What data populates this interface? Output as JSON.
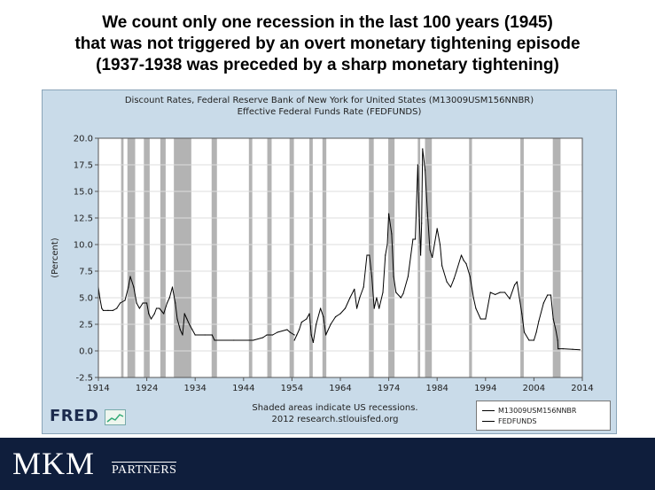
{
  "slide": {
    "title_lines": [
      "We count only one recession in the last 100 years (1945)",
      "that was not triggered by an overt monetary tightening episode",
      "(1937-1938 was preceded by a sharp monetary tightening)"
    ]
  },
  "chart_data": {
    "type": "line",
    "title": "Discount Rates, Federal Reserve Bank of New York for United States (M13009USM156NNBR)",
    "subtitle": "Effective Federal Funds Rate (FEDFUNDS)",
    "xlabel": "",
    "ylabel": "(Percent)",
    "xlim": [
      1914,
      2014
    ],
    "ylim": [
      -2.5,
      20.0
    ],
    "x_ticks": [
      "1914",
      "1924",
      "1934",
      "1944",
      "1954",
      "1964",
      "1974",
      "1984",
      "1994",
      "2004",
      "2014"
    ],
    "y_ticks": [
      "-2.5",
      "0.0",
      "2.5",
      "5.0",
      "7.5",
      "10.0",
      "12.5",
      "15.0",
      "17.5",
      "20.0"
    ],
    "grid": true,
    "legend_position": "bottom-right",
    "recession_shading": [
      [
        1918.7,
        1919.2
      ],
      [
        1920.0,
        1921.6
      ],
      [
        1923.4,
        1924.6
      ],
      [
        1926.8,
        1927.9
      ],
      [
        1929.6,
        1933.2
      ],
      [
        1937.4,
        1938.5
      ],
      [
        1945.1,
        1945.8
      ],
      [
        1948.9,
        1949.8
      ],
      [
        1953.5,
        1954.4
      ],
      [
        1957.6,
        1958.3
      ],
      [
        1960.3,
        1961.1
      ],
      [
        1969.9,
        1970.9
      ],
      [
        1973.9,
        1975.2
      ],
      [
        1980.0,
        1980.5
      ],
      [
        1981.5,
        1982.9
      ],
      [
        1990.6,
        1991.2
      ],
      [
        2001.2,
        2001.9
      ],
      [
        2007.9,
        2009.5
      ]
    ],
    "series": [
      {
        "name": "M13009USM156NNBR",
        "x": [
          1914.0,
          1914.3,
          1914.7,
          1915.0,
          1916.0,
          1917.0,
          1917.8,
          1918.5,
          1919.5,
          1920.2,
          1920.6,
          1921.3,
          1921.9,
          1922.5,
          1923.2,
          1924.0,
          1924.4,
          1924.9,
          1925.6,
          1926.0,
          1926.6,
          1927.5,
          1928.2,
          1928.7,
          1929.3,
          1929.9,
          1930.3,
          1930.9,
          1931.4,
          1931.8,
          1932.3,
          1932.8,
          1933.4,
          1934.0,
          1936.0,
          1937.5,
          1938.0,
          1942.0,
          1946.0,
          1948.0,
          1948.8,
          1950.0,
          1951.0,
          1953.0,
          1953.6,
          1954.5
        ],
        "y": [
          6.0,
          5.0,
          4.0,
          3.8,
          3.8,
          3.8,
          4.0,
          4.5,
          4.75,
          6.0,
          7.0,
          6.0,
          4.5,
          4.0,
          4.5,
          4.5,
          3.5,
          3.0,
          3.5,
          4.0,
          4.0,
          3.5,
          4.5,
          5.0,
          6.0,
          4.5,
          3.0,
          2.0,
          1.5,
          3.5,
          3.0,
          2.5,
          2.0,
          1.5,
          1.5,
          1.5,
          1.0,
          1.0,
          1.0,
          1.25,
          1.5,
          1.5,
          1.75,
          2.0,
          1.75,
          1.5
        ]
      },
      {
        "name": "FEDFUNDS",
        "x": [
          1954.5,
          1955.0,
          1955.5,
          1956.0,
          1957.0,
          1957.6,
          1958.0,
          1958.4,
          1959.0,
          1959.9,
          1960.5,
          1961.0,
          1962.0,
          1963.0,
          1964.0,
          1965.0,
          1966.0,
          1966.9,
          1967.4,
          1968.0,
          1968.8,
          1969.5,
          1970.0,
          1970.5,
          1971.0,
          1971.5,
          1972.0,
          1972.8,
          1973.3,
          1973.7,
          1974.0,
          1974.6,
          1975.0,
          1975.5,
          1976.5,
          1977.0,
          1978.0,
          1979.0,
          1979.5,
          1980.0,
          1980.2,
          1980.6,
          1980.8,
          1981.0,
          1981.5,
          1982.0,
          1982.5,
          1983.0,
          1984.0,
          1984.6,
          1985.0,
          1986.0,
          1986.8,
          1987.5,
          1988.0,
          1989.0,
          1989.5,
          1990.0,
          1990.8,
          1991.5,
          1992.0,
          1993.0,
          1994.0,
          1995.0,
          1996.0,
          1997.0,
          1998.0,
          1999.0,
          2000.0,
          2000.5,
          2001.0,
          2001.5,
          2002.0,
          2003.0,
          2004.0,
          2004.5,
          2005.0,
          2006.0,
          2006.8,
          2007.5,
          2008.0,
          2008.5,
          2008.9,
          2009.0,
          2010.0,
          2012.0,
          2013.5
        ],
        "y": [
          1.0,
          1.5,
          2.0,
          2.7,
          3.0,
          3.5,
          1.5,
          0.8,
          2.5,
          4.0,
          3.2,
          1.5,
          2.5,
          3.2,
          3.5,
          4.0,
          5.0,
          5.8,
          4.0,
          5.0,
          6.0,
          9.0,
          9.0,
          7.0,
          4.0,
          5.0,
          4.0,
          5.5,
          9.0,
          10.0,
          12.9,
          11.0,
          7.0,
          5.5,
          5.0,
          5.4,
          7.0,
          10.5,
          10.5,
          17.5,
          14.0,
          9.0,
          12.0,
          19.0,
          17.0,
          13.0,
          9.5,
          8.8,
          11.5,
          10.0,
          8.0,
          6.5,
          6.0,
          6.8,
          7.5,
          9.0,
          8.5,
          8.2,
          7.0,
          5.0,
          4.0,
          3.0,
          3.0,
          5.5,
          5.3,
          5.5,
          5.5,
          4.9,
          6.2,
          6.5,
          5.0,
          3.5,
          1.75,
          1.0,
          1.0,
          1.75,
          2.8,
          4.5,
          5.25,
          5.25,
          3.0,
          2.0,
          1.0,
          0.2,
          0.2,
          0.15,
          0.1
        ]
      }
    ]
  },
  "chart_notes": {
    "shaded": "Shaded areas indicate US recessions.",
    "source": "2012 research.stlouisfed.org"
  },
  "brand": {
    "fred_logo": "FRED",
    "company": "MKM",
    "company_sub": "PARTNERS",
    "footer_color": "#0f1e3c",
    "plot_bg": "#c9dbe9",
    "recession_color": "#b3b3b3"
  }
}
